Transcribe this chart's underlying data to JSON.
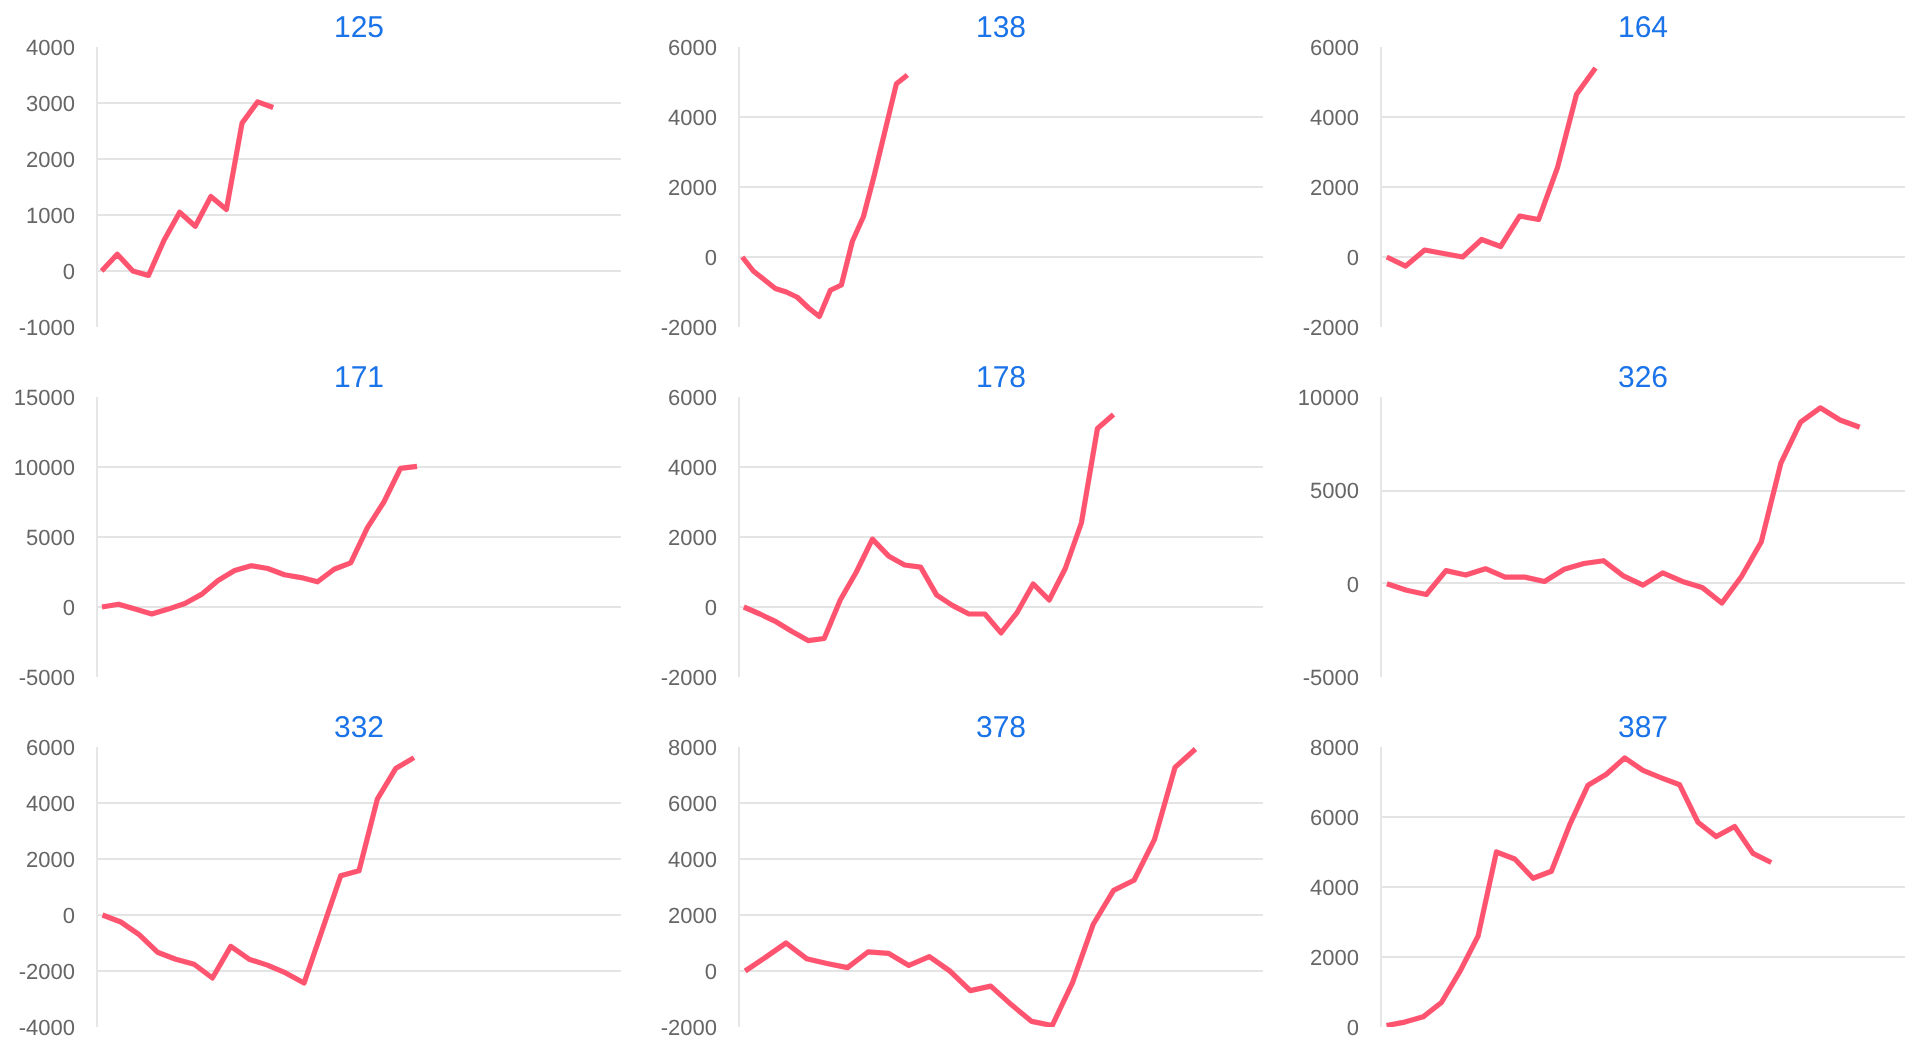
{
  "chart_data": [
    {
      "type": "line",
      "title": "125",
      "grid": "y",
      "tick_labels": "y",
      "ylim": [
        -1000,
        4000
      ],
      "yticks": [
        -1000,
        0,
        1000,
        2000,
        3000,
        4000
      ],
      "categories": [
        null,
        null,
        null,
        null,
        null,
        null,
        null,
        null,
        null,
        null,
        null,
        null,
        null,
        null,
        null,
        null,
        null,
        null,
        null,
        null,
        null,
        null,
        null,
        null,
        null,
        null,
        null,
        null,
        null,
        null,
        null,
        null,
        null,
        null
      ],
      "series": [
        {
          "color": "#ff5470",
          "values": [
            0,
            300,
            0,
            -80,
            550,
            1050,
            800,
            1330,
            1100,
            2640,
            3020,
            2920,
            null,
            null,
            null,
            null,
            null,
            null,
            null,
            null,
            null,
            null,
            null,
            null,
            null,
            null,
            null,
            null,
            null,
            null,
            null,
            null,
            null,
            null
          ]
        }
      ]
    },
    {
      "type": "line",
      "title": "138",
      "grid": "y",
      "tick_labels": "y",
      "ylim": [
        -2000,
        6000
      ],
      "yticks": [
        -2000,
        0,
        2000,
        4000,
        6000
      ],
      "categories": [
        null,
        null,
        null,
        null,
        null,
        null,
        null,
        null,
        null,
        null,
        null,
        null,
        null,
        null,
        null,
        null,
        null,
        null,
        null,
        null,
        null,
        null,
        null,
        null,
        null,
        null,
        null,
        null,
        null,
        null,
        null,
        null,
        null,
        null,
        null,
        null,
        null,
        null,
        null,
        null,
        null,
        null,
        null,
        null,
        null,
        null,
        null,
        null
      ],
      "series": [
        {
          "color": "#ff5470",
          "values": [
            0,
            -400,
            -650,
            -900,
            -1000,
            -1150,
            -1450,
            -1700,
            -950,
            -800,
            450,
            1150,
            2350,
            3650,
            4950,
            5200,
            null,
            null,
            null,
            null,
            null,
            null,
            null,
            null,
            null,
            null,
            null,
            null,
            null,
            null,
            null,
            null,
            null,
            null,
            null,
            null,
            null,
            null,
            null,
            null,
            null,
            null,
            null,
            null,
            null,
            null,
            null,
            null
          ]
        }
      ]
    },
    {
      "type": "line",
      "title": "164",
      "grid": "y",
      "tick_labels": "y",
      "ylim": [
        -2000,
        6000
      ],
      "yticks": [
        -2000,
        0,
        2000,
        4000,
        6000
      ],
      "categories": [
        null,
        null,
        null,
        null,
        null,
        null,
        null,
        null,
        null,
        null,
        null,
        null,
        null,
        null,
        null,
        null,
        null,
        null,
        null,
        null,
        null,
        null,
        null,
        null,
        null,
        null,
        null,
        null
      ],
      "series": [
        {
          "color": "#ff5470",
          "values": [
            0,
            -260,
            200,
            100,
            0,
            500,
            300,
            1170,
            1070,
            2560,
            4650,
            5400,
            null,
            null,
            null,
            null,
            null,
            null,
            null,
            null,
            null,
            null,
            null,
            null,
            null,
            null,
            null,
            null
          ]
        }
      ]
    },
    {
      "type": "line",
      "title": "171",
      "grid": "y",
      "tick_labels": "y",
      "ylim": [
        -5000,
        15000
      ],
      "yticks": [
        -5000,
        0,
        5000,
        10000,
        15000
      ],
      "categories": [
        null,
        null,
        null,
        null,
        null,
        null,
        null,
        null,
        null,
        null,
        null,
        null,
        null,
        null,
        null,
        null,
        null,
        null,
        null,
        null,
        null,
        null,
        null,
        null,
        null,
        null,
        null,
        null,
        null,
        null,
        null,
        null
      ],
      "series": [
        {
          "color": "#ff5470",
          "values": [
            0,
            200,
            -150,
            -500,
            -150,
            250,
            900,
            1900,
            2600,
            2950,
            2750,
            2300,
            2100,
            1800,
            2700,
            3150,
            5650,
            7500,
            9900,
            10050,
            null,
            null,
            null,
            null,
            null,
            null,
            null,
            null,
            null,
            null,
            null,
            null
          ]
        }
      ]
    },
    {
      "type": "line",
      "title": "178",
      "grid": "y",
      "tick_labels": "y",
      "ylim": [
        -2000,
        6000
      ],
      "yticks": [
        -2000,
        0,
        2000,
        4000,
        6000
      ],
      "categories": [
        null,
        null,
        null,
        null,
        null,
        null,
        null,
        null,
        null,
        null,
        null,
        null,
        null,
        null,
        null,
        null,
        null,
        null,
        null,
        null,
        null,
        null,
        null,
        null,
        null,
        null,
        null,
        null,
        null,
        null,
        null,
        null,
        null
      ],
      "series": [
        {
          "color": "#ff5470",
          "values": [
            0,
            -200,
            -420,
            -700,
            -960,
            -900,
            200,
            1000,
            1940,
            1460,
            1200,
            1140,
            340,
            40,
            -200,
            -200,
            -740,
            -160,
            660,
            200,
            1100,
            2400,
            5100,
            5500,
            null,
            null,
            null,
            null,
            null,
            null,
            null,
            null,
            null
          ]
        }
      ]
    },
    {
      "type": "line",
      "title": "326",
      "grid": "y",
      "tick_labels": "y",
      "ylim": [
        -5000,
        10000
      ],
      "yticks": [
        -5000,
        0,
        5000,
        10000
      ],
      "categories": [
        null,
        null,
        null,
        null,
        null,
        null,
        null,
        null,
        null,
        null,
        null,
        null,
        null,
        null,
        null,
        null,
        null,
        null,
        null,
        null,
        null,
        null,
        null,
        null,
        null,
        null,
        null
      ],
      "series": [
        {
          "color": "#ff5470",
          "values": [
            0,
            -350,
            -580,
            700,
            460,
            800,
            350,
            350,
            120,
            770,
            1080,
            1230,
            420,
            -80,
            580,
            120,
            -200,
            -1040,
            380,
            2230,
            6460,
            8650,
            9420,
            8770,
            8380,
            null,
            null
          ]
        }
      ]
    },
    {
      "type": "line",
      "title": "332",
      "grid": "y",
      "tick_labels": "y",
      "ylim": [
        -4000,
        6000
      ],
      "yticks": [
        -4000,
        -2000,
        0,
        2000,
        4000,
        6000
      ],
      "categories": [
        null,
        null,
        null,
        null,
        null,
        null,
        null,
        null,
        null,
        null,
        null,
        null,
        null,
        null,
        null,
        null,
        null,
        null,
        null,
        null,
        null,
        null,
        null,
        null,
        null,
        null,
        null,
        null,
        null
      ],
      "series": [
        {
          "color": "#ff5470",
          "values": [
            0,
            -250,
            -700,
            -1330,
            -1580,
            -1760,
            -2250,
            -1120,
            -1580,
            -1790,
            -2070,
            -2430,
            -520,
            1400,
            1580,
            4140,
            5230,
            5620,
            null,
            null,
            null,
            null,
            null,
            null,
            null,
            null,
            null,
            null,
            null
          ]
        }
      ]
    },
    {
      "type": "line",
      "title": "378",
      "grid": "y",
      "tick_labels": "y",
      "ylim": [
        -2000,
        8000
      ],
      "yticks": [
        -2000,
        0,
        2000,
        4000,
        6000,
        8000
      ],
      "categories": [
        null,
        null,
        null,
        null,
        null,
        null,
        null,
        null,
        null,
        null,
        null,
        null,
        null,
        null,
        null,
        null,
        null,
        null,
        null,
        null,
        null,
        null,
        null,
        null,
        null,
        null
      ],
      "series": [
        {
          "color": "#ff5470",
          "values": [
            0,
            490,
            1000,
            440,
            270,
            120,
            680,
            630,
            200,
            510,
            0,
            -700,
            -540,
            -1200,
            -1800,
            -1950,
            -410,
            1660,
            2880,
            3240,
            4700,
            7270,
            7930,
            null,
            null,
            null
          ]
        }
      ]
    },
    {
      "type": "line",
      "title": "387",
      "grid": "y",
      "tick_labels": "y",
      "ylim": [
        0,
        8000
      ],
      "yticks": [
        0,
        2000,
        4000,
        6000,
        8000
      ],
      "categories": [
        null,
        null,
        null,
        null,
        null,
        null,
        null,
        null,
        null,
        null,
        null,
        null,
        null,
        null,
        null,
        null,
        null,
        null,
        null,
        null,
        null,
        null,
        null,
        null,
        null,
        null,
        null,
        null,
        null
      ],
      "series": [
        {
          "color": "#ff5470",
          "values": [
            40,
            140,
            290,
            700,
            1580,
            2600,
            5000,
            4800,
            4250,
            4450,
            5780,
            6910,
            7220,
            7690,
            7330,
            7120,
            6920,
            5850,
            5440,
            5730,
            4960,
            4700,
            null,
            null,
            null,
            null,
            null,
            null,
            null
          ]
        }
      ]
    }
  ]
}
